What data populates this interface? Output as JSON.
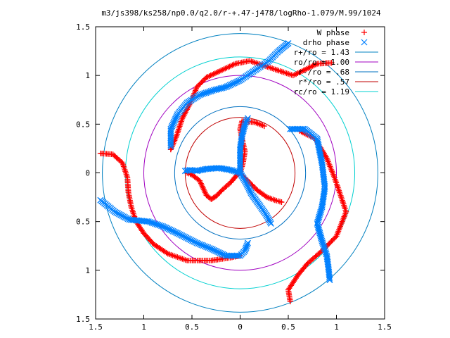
{
  "chart_data": {
    "type": "scatter",
    "title": "m3/js398/ks258/np0.0/q2.0/r-+.47-j478/logRho-1.079/M.99/1024",
    "xlabel": "",
    "ylabel": "",
    "xlim": [
      -1.5,
      1.5
    ],
    "ylim": [
      -1.5,
      1.5
    ],
    "x_tick_labels": [
      "1.5",
      "1",
      "0.5",
      "0",
      "0.5",
      "1",
      "1.5"
    ],
    "y_tick_labels": [
      "1.5",
      "1",
      "0.5",
      "0",
      "0.5",
      "1",
      "1.5"
    ],
    "legend": {
      "placement": "top-right",
      "entries": [
        {
          "label": "W phase",
          "color": "#ff0000",
          "marker": "plus"
        },
        {
          "label": "drho phase",
          "color": "#0080ff",
          "marker": "cross"
        },
        {
          "label": "r+/ro = 1.43",
          "color": "#0080c0",
          "marker": "line"
        },
        {
          "label": "ro/ro = 1.00",
          "color": "#a000c0",
          "marker": "line"
        },
        {
          "label": "r-/ro = .68",
          "color": "#0070c0",
          "marker": "line"
        },
        {
          "label": "r*/ro = .57",
          "color": "#c00000",
          "marker": "line"
        },
        {
          "label": "rc/ro = 1.19",
          "color": "#00d0d0",
          "marker": "line"
        }
      ]
    },
    "circles": [
      {
        "name": "r+/ro = 1.43",
        "r": 1.43
      },
      {
        "name": "ro/ro = 1.00",
        "r": 1.0
      },
      {
        "name": "r-/ro = .68",
        "r": 0.68
      },
      {
        "name": "r*/ro = .57",
        "r": 0.57
      },
      {
        "name": "rc/ro = 1.19",
        "r": 1.19
      }
    ],
    "series": [
      {
        "name": "W phase",
        "arms": [
          [
            [
              0.0,
              0.0
            ],
            [
              -0.04,
              -0.03
            ],
            [
              -0.1,
              -0.1
            ],
            [
              -0.18,
              -0.17
            ],
            [
              -0.25,
              -0.24
            ],
            [
              -0.3,
              -0.27
            ],
            [
              -0.35,
              -0.23
            ],
            [
              -0.42,
              -0.08
            ],
            [
              -0.5,
              -0.02
            ],
            [
              -0.55,
              0.0
            ]
          ],
          [
            [
              0.0,
              0.0
            ],
            [
              0.03,
              0.1
            ],
            [
              0.05,
              0.22
            ],
            [
              0.02,
              0.35
            ],
            [
              0.0,
              0.45
            ],
            [
              0.02,
              0.53
            ],
            [
              0.15,
              0.52
            ],
            [
              0.25,
              0.48
            ]
          ],
          [
            [
              0.0,
              0.0
            ],
            [
              0.08,
              -0.08
            ],
            [
              0.18,
              -0.18
            ],
            [
              0.28,
              -0.25
            ],
            [
              0.36,
              -0.28
            ],
            [
              0.43,
              -0.3
            ]
          ],
          [
            [
              -0.72,
              0.24
            ],
            [
              -0.66,
              0.38
            ],
            [
              -0.6,
              0.56
            ],
            [
              -0.51,
              0.73
            ],
            [
              -0.45,
              0.88
            ],
            [
              -0.35,
              0.98
            ],
            [
              -0.2,
              1.05
            ],
            [
              -0.05,
              1.12
            ],
            [
              0.1,
              1.15
            ],
            [
              0.25,
              1.1
            ],
            [
              0.4,
              1.05
            ],
            [
              0.55,
              1.0
            ],
            [
              0.8,
              1.12
            ],
            [
              0.95,
              1.13
            ]
          ],
          [
            [
              -1.45,
              0.2
            ],
            [
              -1.32,
              0.19
            ],
            [
              -1.22,
              0.1
            ],
            [
              -1.17,
              -0.05
            ],
            [
              -1.16,
              -0.2
            ],
            [
              -1.13,
              -0.35
            ],
            [
              -1.08,
              -0.5
            ],
            [
              -1.0,
              -0.62
            ],
            [
              -0.9,
              -0.73
            ],
            [
              -0.75,
              -0.83
            ],
            [
              -0.55,
              -0.9
            ],
            [
              -0.3,
              -0.9
            ],
            [
              -0.1,
              -0.87
            ],
            [
              0.0,
              -0.85
            ]
          ],
          [
            [
              0.62,
              0.43
            ],
            [
              0.78,
              0.35
            ],
            [
              0.9,
              0.15
            ],
            [
              0.98,
              -0.05
            ],
            [
              1.05,
              -0.25
            ],
            [
              1.1,
              -0.4
            ],
            [
              1.0,
              -0.65
            ],
            [
              0.85,
              -0.8
            ],
            [
              0.7,
              -0.93
            ],
            [
              0.6,
              -1.05
            ],
            [
              0.5,
              -1.2
            ],
            [
              0.52,
              -1.32
            ]
          ]
        ]
      },
      {
        "name": "drho phase",
        "arms": [
          [
            [
              0.0,
              0.0
            ],
            [
              -0.1,
              0.03
            ],
            [
              -0.22,
              0.05
            ],
            [
              -0.35,
              0.04
            ],
            [
              -0.45,
              0.02
            ],
            [
              -0.52,
              0.03
            ],
            [
              -0.57,
              0.02
            ]
          ],
          [
            [
              0.0,
              0.0
            ],
            [
              0.0,
              0.12
            ],
            [
              0.0,
              0.25
            ],
            [
              0.02,
              0.38
            ],
            [
              0.05,
              0.5
            ],
            [
              0.08,
              0.56
            ]
          ],
          [
            [
              0.0,
              0.0
            ],
            [
              0.06,
              -0.1
            ],
            [
              0.12,
              -0.22
            ],
            [
              0.2,
              -0.33
            ],
            [
              0.27,
              -0.43
            ],
            [
              0.32,
              -0.52
            ]
          ],
          [
            [
              -0.72,
              0.27
            ],
            [
              -0.72,
              0.45
            ],
            [
              -0.65,
              0.6
            ],
            [
              -0.55,
              0.72
            ],
            [
              -0.42,
              0.8
            ],
            [
              -0.27,
              0.85
            ],
            [
              -0.15,
              0.88
            ],
            [
              0.0,
              0.95
            ],
            [
              0.15,
              1.05
            ],
            [
              0.3,
              1.15
            ],
            [
              0.4,
              1.25
            ],
            [
              0.5,
              1.33
            ]
          ],
          [
            [
              0.52,
              0.45
            ],
            [
              0.67,
              0.45
            ],
            [
              0.8,
              0.35
            ],
            [
              0.85,
              0.1
            ],
            [
              0.88,
              -0.15
            ],
            [
              0.85,
              -0.35
            ],
            [
              0.8,
              -0.52
            ],
            [
              0.85,
              -0.7
            ],
            [
              0.9,
              -0.85
            ],
            [
              0.92,
              -1.0
            ],
            [
              0.93,
              -1.1
            ]
          ],
          [
            [
              -1.45,
              -0.28
            ],
            [
              -1.3,
              -0.4
            ],
            [
              -1.15,
              -0.48
            ],
            [
              -0.95,
              -0.5
            ],
            [
              -0.8,
              -0.55
            ],
            [
              -0.65,
              -0.62
            ],
            [
              -0.45,
              -0.72
            ],
            [
              -0.3,
              -0.78
            ],
            [
              -0.15,
              -0.85
            ],
            [
              0.0,
              -0.85
            ],
            [
              0.05,
              -0.8
            ],
            [
              0.08,
              -0.72
            ]
          ]
        ]
      }
    ]
  }
}
